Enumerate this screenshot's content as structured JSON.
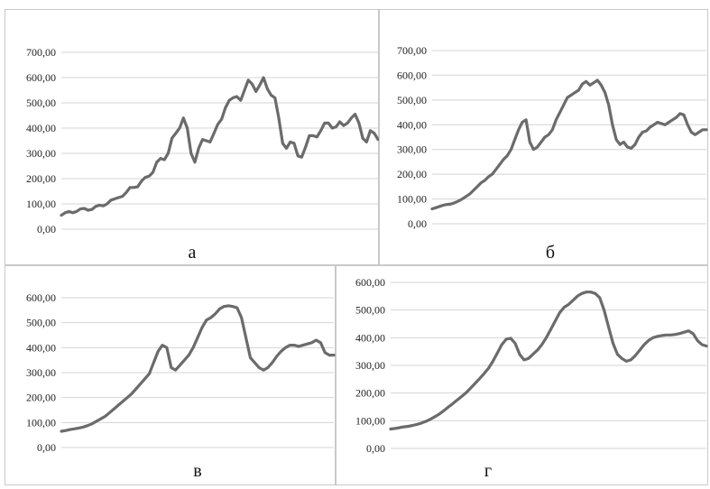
{
  "chart_data": [
    {
      "type": "line",
      "caption": "а",
      "ylim": [
        0,
        700
      ],
      "y_ticks": [
        "0,00",
        "100,00",
        "200,00",
        "300,00",
        "400,00",
        "500,00",
        "600,00",
        "700,00"
      ],
      "grid": true,
      "color": "#6b6b6b",
      "values": [
        55,
        65,
        70,
        65,
        70,
        80,
        82,
        75,
        78,
        90,
        95,
        92,
        100,
        115,
        120,
        125,
        130,
        145,
        165,
        165,
        168,
        190,
        205,
        210,
        225,
        265,
        280,
        275,
        300,
        360,
        380,
        400,
        440,
        400,
        300,
        265,
        320,
        355,
        350,
        345,
        380,
        415,
        435,
        480,
        510,
        520,
        525,
        510,
        550,
        590,
        575,
        545,
        570,
        600,
        555,
        530,
        520,
        440,
        340,
        320,
        345,
        340,
        290,
        285,
        325,
        370,
        370,
        365,
        390,
        420,
        420,
        400,
        405,
        425,
        410,
        420,
        440,
        455,
        420,
        360,
        345,
        390,
        380,
        355
      ]
    },
    {
      "type": "line",
      "caption": "б",
      "ylim": [
        0,
        700
      ],
      "y_ticks": [
        "0,00",
        "100,00",
        "200,00",
        "300,00",
        "400,00",
        "500,00",
        "600,00",
        "700,00"
      ],
      "grid": true,
      "color": "#6b6b6b",
      "values": [
        60,
        65,
        70,
        75,
        78,
        80,
        85,
        92,
        100,
        110,
        120,
        135,
        150,
        165,
        175,
        190,
        200,
        220,
        240,
        260,
        275,
        300,
        340,
        380,
        410,
        420,
        330,
        300,
        310,
        330,
        350,
        360,
        380,
        420,
        450,
        480,
        510,
        520,
        530,
        540,
        565,
        575,
        560,
        570,
        580,
        560,
        530,
        480,
        400,
        340,
        320,
        330,
        310,
        305,
        320,
        350,
        370,
        375,
        390,
        400,
        410,
        405,
        400,
        410,
        420,
        430,
        445,
        440,
        400,
        370,
        360,
        370,
        380,
        380
      ]
    },
    {
      "type": "line",
      "caption": "в",
      "ylim": [
        0,
        600
      ],
      "y_ticks": [
        "0,00",
        "100,00",
        "200,00",
        "300,00",
        "400,00",
        "500,00",
        "600,00"
      ],
      "grid": true,
      "color": "#6b6b6b",
      "values": [
        65,
        68,
        72,
        75,
        78,
        82,
        88,
        95,
        105,
        115,
        125,
        140,
        155,
        170,
        185,
        200,
        215,
        235,
        255,
        275,
        295,
        340,
        385,
        410,
        400,
        320,
        310,
        330,
        350,
        370,
        400,
        440,
        480,
        510,
        520,
        535,
        555,
        565,
        568,
        565,
        560,
        520,
        440,
        360,
        340,
        320,
        310,
        320,
        340,
        365,
        385,
        400,
        410,
        410,
        405,
        410,
        415,
        420,
        430,
        420,
        380,
        370,
        370
      ]
    },
    {
      "type": "line",
      "caption": "г",
      "ylim": [
        0,
        600
      ],
      "y_ticks": [
        "0,00",
        "100,00",
        "200,00",
        "300,00",
        "400,00",
        "500,00",
        "600,00"
      ],
      "grid": true,
      "color": "#6b6b6b",
      "values": [
        70,
        72,
        75,
        78,
        80,
        83,
        87,
        92,
        98,
        106,
        115,
        125,
        137,
        150,
        162,
        175,
        188,
        202,
        218,
        235,
        252,
        270,
        290,
        315,
        345,
        375,
        395,
        398,
        380,
        340,
        320,
        325,
        340,
        355,
        375,
        400,
        430,
        460,
        490,
        510,
        520,
        535,
        550,
        560,
        565,
        565,
        560,
        545,
        500,
        440,
        380,
        340,
        325,
        315,
        320,
        335,
        355,
        375,
        390,
        400,
        405,
        408,
        410,
        410,
        412,
        415,
        420,
        425,
        415,
        390,
        375,
        370
      ]
    }
  ]
}
